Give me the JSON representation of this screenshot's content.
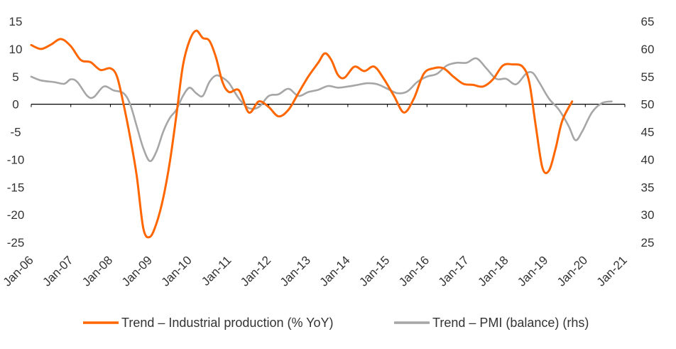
{
  "chart_data": {
    "type": "line",
    "title": "",
    "xlabel": "",
    "ylabel": "",
    "y2label": "",
    "grid": false,
    "legend_position": "bottom",
    "x_tick_labels": [
      "Jan-06",
      "Jan-07",
      "Jan-08",
      "Jan-09",
      "Jan-10",
      "Jan-11",
      "Jan-12",
      "Jan-13",
      "Jan-14",
      "Jan-15",
      "Jan-16",
      "Jan-17",
      "Jan-18",
      "Jan-19",
      "Jan-20",
      "Jan-21"
    ],
    "x_range": [
      "Jan-06",
      "Jan-21"
    ],
    "y_left": {
      "min": -25,
      "max": 15,
      "ticks": [
        15,
        10,
        5,
        0,
        -5,
        -10,
        -15,
        -20,
        -25
      ]
    },
    "y_right": {
      "min": 25,
      "max": 65,
      "ticks": [
        65,
        60,
        55,
        50,
        45,
        40,
        35,
        30,
        25
      ]
    },
    "colors": {
      "industrial_production": "#FF6600",
      "pmi": "#A6A6A6",
      "axis": "#000000",
      "text": "#333333"
    },
    "series": [
      {
        "name": "Trend – Industrial production (% YoY)",
        "axis": "left",
        "color": "#FF6600",
        "points": [
          [
            "Jan-06",
            10.7
          ],
          [
            "Apr-06",
            10.0
          ],
          [
            "Jul-06",
            10.8
          ],
          [
            "Oct-06",
            11.8
          ],
          [
            "Jan-07",
            10.5
          ],
          [
            "Apr-07",
            8.0
          ],
          [
            "Jul-07",
            7.6
          ],
          [
            "Oct-07",
            6.2
          ],
          [
            "Jan-08",
            6.5
          ],
          [
            "Mar-08",
            5.0
          ],
          [
            "May-08",
            0.0
          ],
          [
            "Jul-08",
            -6.0
          ],
          [
            "Sep-08",
            -13.0
          ],
          [
            "Nov-08",
            -22.5
          ],
          [
            "Jan-09",
            -24.0
          ],
          [
            "Mar-09",
            -21.5
          ],
          [
            "May-09",
            -17.0
          ],
          [
            "Jul-09",
            -10.5
          ],
          [
            "Sep-09",
            -2.0
          ],
          [
            "Nov-09",
            7.0
          ],
          [
            "Jan-10",
            11.5
          ],
          [
            "Mar-10",
            13.3
          ],
          [
            "May-10",
            12.0
          ],
          [
            "Jul-10",
            11.5
          ],
          [
            "Sep-10",
            8.5
          ],
          [
            "Nov-10",
            4.0
          ],
          [
            "Jan-11",
            2.2
          ],
          [
            "Apr-11",
            2.5
          ],
          [
            "Jul-11",
            -1.5
          ],
          [
            "Oct-11",
            0.5
          ],
          [
            "Jan-12",
            -0.5
          ],
          [
            "Apr-12",
            -2.2
          ],
          [
            "Jul-12",
            -1.0
          ],
          [
            "Oct-12",
            2.0
          ],
          [
            "Jan-13",
            5.0
          ],
          [
            "Apr-13",
            7.5
          ],
          [
            "Jun-13",
            9.2
          ],
          [
            "Aug-13",
            8.0
          ],
          [
            "Oct-13",
            5.3
          ],
          [
            "Dec-13",
            4.8
          ],
          [
            "Mar-14",
            6.8
          ],
          [
            "Jun-14",
            6.0
          ],
          [
            "Sep-14",
            6.8
          ],
          [
            "Dec-14",
            4.5
          ],
          [
            "Mar-15",
            1.5
          ],
          [
            "Jun-15",
            -1.5
          ],
          [
            "Sep-15",
            1.0
          ],
          [
            "Dec-15",
            5.5
          ],
          [
            "Mar-16",
            6.5
          ],
          [
            "Jun-16",
            6.5
          ],
          [
            "Sep-16",
            5.0
          ],
          [
            "Dec-16",
            3.7
          ],
          [
            "Mar-17",
            3.5
          ],
          [
            "Jun-17",
            3.2
          ],
          [
            "Sep-17",
            4.5
          ],
          [
            "Dec-17",
            7.0
          ],
          [
            "Mar-18",
            7.2
          ],
          [
            "Jun-18",
            6.8
          ],
          [
            "Aug-18",
            4.0
          ],
          [
            "Oct-18",
            -4.0
          ],
          [
            "Dec-18",
            -11.5
          ],
          [
            "Feb-19",
            -12.0
          ],
          [
            "Apr-19",
            -8.0
          ],
          [
            "Jun-19",
            -3.0
          ],
          [
            "Sep-19",
            0.5
          ]
        ]
      },
      {
        "name": "Trend – PMI (balance) (rhs)",
        "axis": "right",
        "color": "#A6A6A6",
        "points": [
          [
            "Jan-06",
            55.0
          ],
          [
            "Apr-06",
            54.3
          ],
          [
            "Aug-06",
            54.0
          ],
          [
            "Nov-06",
            53.7
          ],
          [
            "Jan-07",
            54.5
          ],
          [
            "Mar-07",
            54.0
          ],
          [
            "Jun-07",
            51.5
          ],
          [
            "Aug-07",
            51.3
          ],
          [
            "Nov-07",
            53.2
          ],
          [
            "Feb-08",
            52.5
          ],
          [
            "May-08",
            52.0
          ],
          [
            "Jul-08",
            50.0
          ],
          [
            "Sep-08",
            46.0
          ],
          [
            "Nov-08",
            42.0
          ],
          [
            "Jan-09",
            39.7
          ],
          [
            "Mar-09",
            41.5
          ],
          [
            "May-09",
            45.0
          ],
          [
            "Jul-09",
            47.5
          ],
          [
            "Sep-09",
            49.0
          ],
          [
            "Nov-09",
            51.5
          ],
          [
            "Jan-10",
            53.0
          ],
          [
            "Mar-10",
            52.0
          ],
          [
            "May-10",
            51.5
          ],
          [
            "Jul-10",
            54.0
          ],
          [
            "Sep-10",
            55.2
          ],
          [
            "Nov-10",
            54.8
          ],
          [
            "Jan-11",
            53.8
          ],
          [
            "Apr-11",
            51.0
          ],
          [
            "Jul-11",
            49.3
          ],
          [
            "Oct-11",
            49.5
          ],
          [
            "Jan-12",
            51.5
          ],
          [
            "Apr-12",
            51.8
          ],
          [
            "Jul-12",
            52.8
          ],
          [
            "Oct-12",
            51.5
          ],
          [
            "Jan-13",
            52.2
          ],
          [
            "Apr-13",
            52.6
          ],
          [
            "Jul-13",
            53.3
          ],
          [
            "Oct-13",
            53.0
          ],
          [
            "Jan-14",
            53.2
          ],
          [
            "Apr-14",
            53.5
          ],
          [
            "Jul-14",
            53.8
          ],
          [
            "Oct-14",
            53.6
          ],
          [
            "Jan-15",
            52.8
          ],
          [
            "Apr-15",
            52.0
          ],
          [
            "Jul-15",
            52.3
          ],
          [
            "Oct-15",
            54.0
          ],
          [
            "Jan-16",
            55.0
          ],
          [
            "Apr-16",
            55.5
          ],
          [
            "Jul-16",
            57.0
          ],
          [
            "Oct-16",
            57.5
          ],
          [
            "Jan-17",
            57.5
          ],
          [
            "Apr-17",
            58.3
          ],
          [
            "Jul-17",
            56.5
          ],
          [
            "Oct-17",
            54.6
          ],
          [
            "Jan-18",
            54.6
          ],
          [
            "Apr-18",
            53.6
          ],
          [
            "Jul-18",
            55.5
          ],
          [
            "Sep-18",
            55.7
          ],
          [
            "Nov-18",
            54.0
          ],
          [
            "Feb-19",
            51.0
          ],
          [
            "May-19",
            49.0
          ],
          [
            "Aug-19",
            46.0
          ],
          [
            "Oct-19",
            43.5
          ],
          [
            "Dec-19",
            45.0
          ],
          [
            "Mar-20",
            48.5
          ],
          [
            "Jun-20",
            50.2
          ],
          [
            "Sep-20",
            50.5
          ]
        ]
      }
    ]
  }
}
